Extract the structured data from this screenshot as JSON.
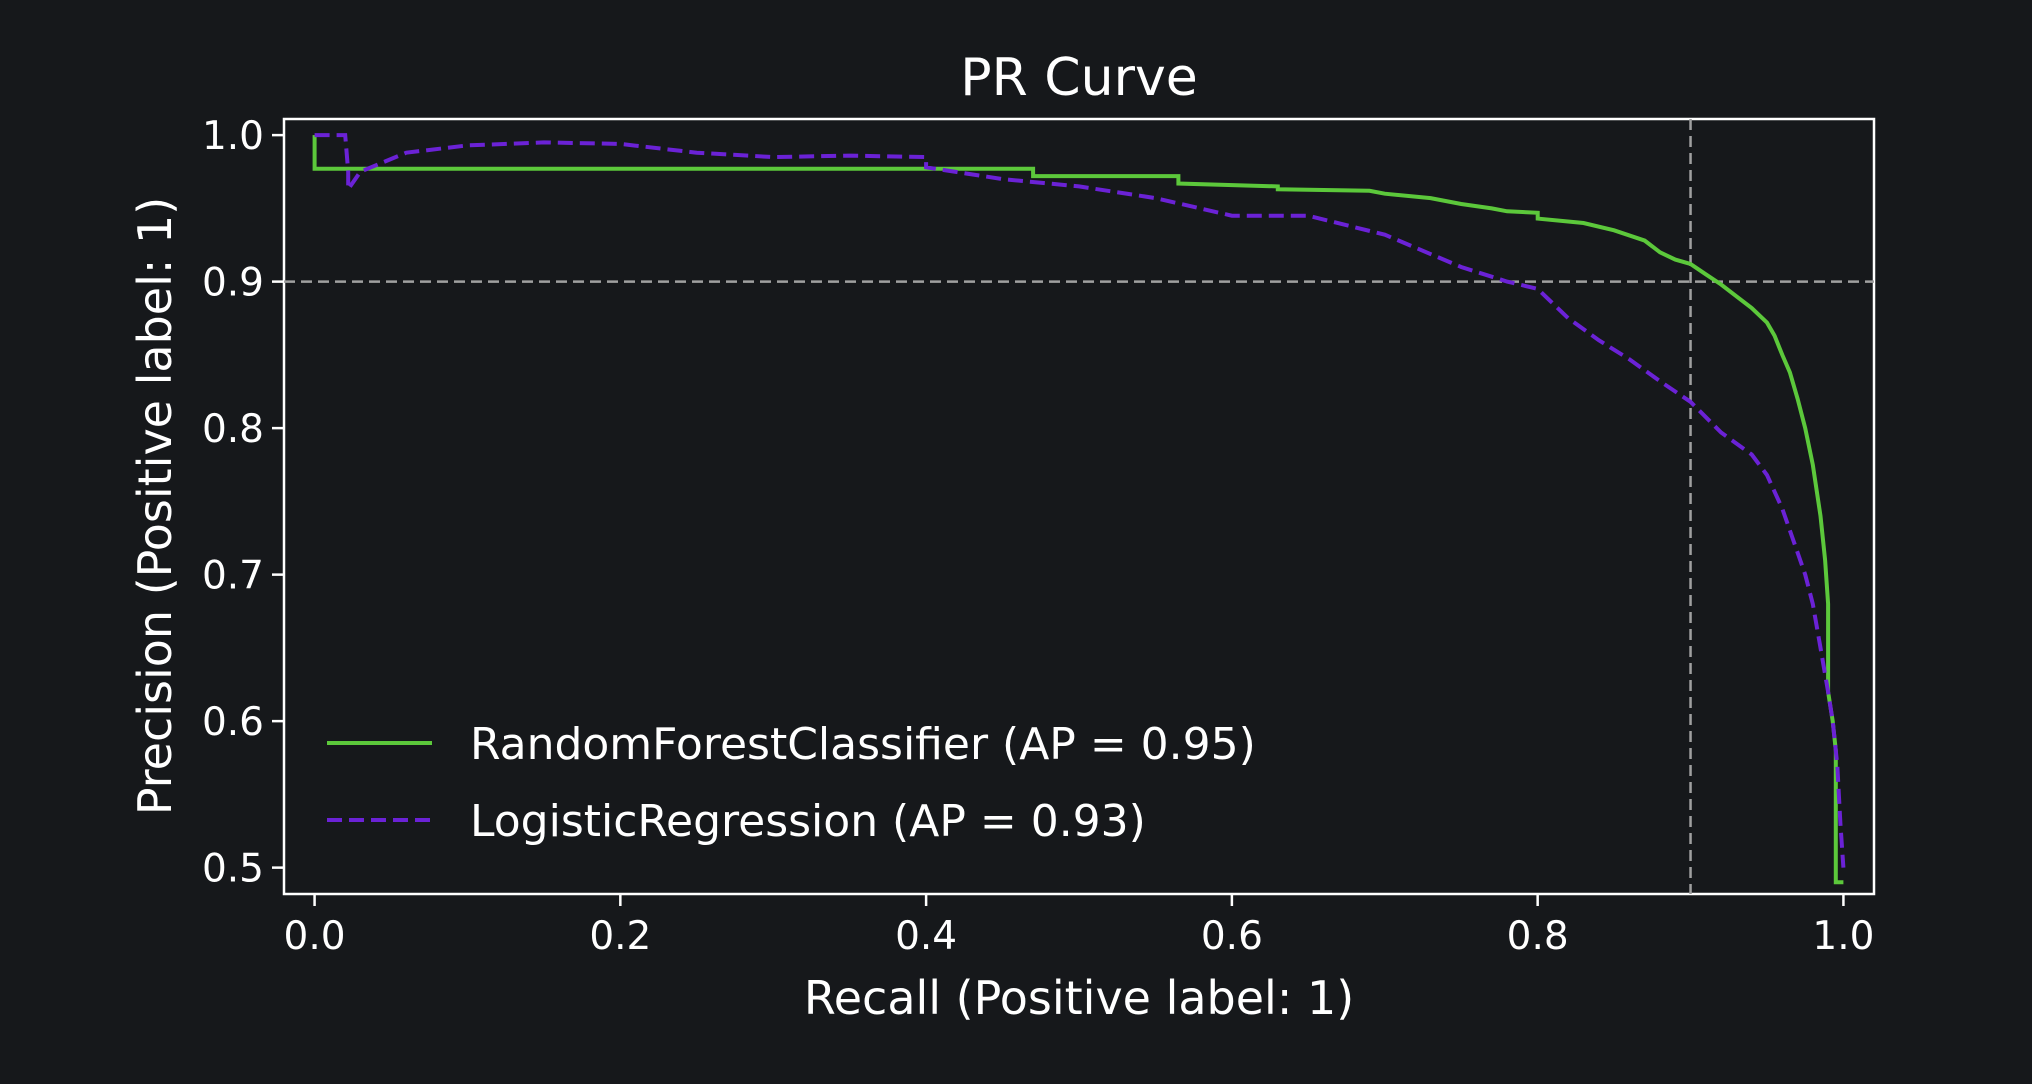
{
  "chart_data": {
    "type": "line",
    "title": "PR Curve",
    "xlabel": "Recall (Positive label: 1)",
    "ylabel": "Precision (Positive label: 1)",
    "xlim": [
      -0.02,
      1.02
    ],
    "ylim": [
      0.482,
      1.011
    ],
    "xticks": [
      0.0,
      0.2,
      0.4,
      0.6,
      0.8,
      1.0
    ],
    "xtick_labels": [
      "0.0",
      "0.2",
      "0.4",
      "0.6",
      "0.8",
      "1.0"
    ],
    "yticks": [
      0.5,
      0.6,
      0.7,
      0.8,
      0.9,
      1.0
    ],
    "ytick_labels": [
      "0.5",
      "0.6",
      "0.7",
      "0.8",
      "0.9",
      "1.0"
    ],
    "grid": false,
    "reference_lines": [
      {
        "orientation": "horizontal",
        "value": 0.9,
        "color": "#a0a0a0",
        "style": "dashed"
      },
      {
        "orientation": "vertical",
        "value": 0.9,
        "color": "#a0a0a0",
        "style": "dashed"
      }
    ],
    "legend_position": "lower-left",
    "series": [
      {
        "name": "RandomForestClassifier (AP = 0.95)",
        "color": "#5cc83b",
        "style": "solid",
        "step": true,
        "x": [
          0.0,
          0.0,
          0.47,
          0.47,
          0.565,
          0.565,
          0.63,
          0.63,
          0.69,
          0.7,
          0.73,
          0.75,
          0.77,
          0.78,
          0.8,
          0.8,
          0.83,
          0.85,
          0.87,
          0.88,
          0.89,
          0.9,
          0.91,
          0.92,
          0.93,
          0.94,
          0.95,
          0.955,
          0.96,
          0.965,
          0.97,
          0.975,
          0.98,
          0.985,
          0.988,
          0.99,
          0.99,
          0.993,
          0.995,
          0.995,
          1.0
        ],
        "y": [
          1.0,
          0.977,
          0.977,
          0.972,
          0.972,
          0.967,
          0.965,
          0.963,
          0.962,
          0.96,
          0.957,
          0.953,
          0.95,
          0.948,
          0.947,
          0.943,
          0.94,
          0.935,
          0.928,
          0.92,
          0.915,
          0.912,
          0.905,
          0.898,
          0.89,
          0.882,
          0.872,
          0.863,
          0.85,
          0.838,
          0.82,
          0.8,
          0.775,
          0.74,
          0.71,
          0.68,
          0.62,
          0.6,
          0.58,
          0.49,
          0.49
        ]
      },
      {
        "name": "LogisticRegression (AP = 0.93)",
        "color": "#6b22d6",
        "style": "dashed",
        "step": true,
        "x": [
          0.0,
          0.02,
          0.022,
          0.022,
          0.03,
          0.06,
          0.1,
          0.15,
          0.2,
          0.25,
          0.3,
          0.35,
          0.4,
          0.4,
          0.45,
          0.5,
          0.55,
          0.6,
          0.65,
          0.7,
          0.75,
          0.78,
          0.8,
          0.82,
          0.84,
          0.86,
          0.88,
          0.9,
          0.92,
          0.94,
          0.95,
          0.96,
          0.97,
          0.975,
          0.98,
          0.985,
          0.99,
          0.993,
          0.996,
          0.998,
          1.0
        ],
        "y": [
          1.0,
          1.0,
          0.975,
          0.963,
          0.975,
          0.988,
          0.993,
          0.995,
          0.994,
          0.988,
          0.985,
          0.986,
          0.985,
          0.978,
          0.97,
          0.965,
          0.957,
          0.945,
          0.945,
          0.932,
          0.91,
          0.9,
          0.895,
          0.875,
          0.86,
          0.847,
          0.832,
          0.818,
          0.797,
          0.782,
          0.768,
          0.745,
          0.715,
          0.7,
          0.68,
          0.65,
          0.62,
          0.6,
          0.57,
          0.53,
          0.5
        ]
      }
    ]
  }
}
